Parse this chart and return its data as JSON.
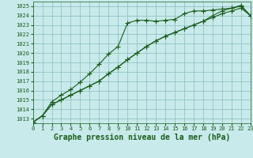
{
  "title": "Graphe pression niveau de la mer (hPa)",
  "background_color": "#c8eaea",
  "grid_color": "#8abcbc",
  "line_color": "#1a5c1a",
  "xlim": [
    0,
    23
  ],
  "ylim": [
    1012.5,
    1025.5
  ],
  "xticks": [
    0,
    1,
    2,
    3,
    4,
    5,
    6,
    7,
    8,
    9,
    10,
    11,
    12,
    13,
    14,
    15,
    16,
    17,
    18,
    19,
    20,
    21,
    22,
    23
  ],
  "yticks": [
    1013,
    1014,
    1015,
    1016,
    1017,
    1018,
    1019,
    1020,
    1021,
    1022,
    1023,
    1024,
    1025
  ],
  "series": [
    [
      1012.6,
      1013.3,
      1014.8,
      1015.5,
      1016.1,
      1016.9,
      1017.8,
      1018.8,
      1019.9,
      1020.7,
      1023.2,
      1023.5,
      1023.5,
      1023.4,
      1023.5,
      1023.6,
      1024.2,
      1024.5,
      1024.5,
      1024.6,
      1024.7,
      1024.8,
      1025.0,
      1024.0
    ],
    [
      1012.6,
      1013.3,
      1014.5,
      1015.0,
      1015.5,
      1016.0,
      1016.5,
      1017.0,
      1017.8,
      1018.5,
      1019.3,
      1020.0,
      1020.7,
      1021.3,
      1021.8,
      1022.2,
      1022.6,
      1023.0,
      1023.4,
      1023.8,
      1024.2,
      1024.5,
      1024.8,
      1024.0
    ],
    [
      1012.6,
      1013.3,
      1014.5,
      1015.0,
      1015.5,
      1016.0,
      1016.5,
      1017.0,
      1017.8,
      1018.5,
      1019.3,
      1020.0,
      1020.7,
      1021.3,
      1021.8,
      1022.2,
      1022.6,
      1023.0,
      1023.4,
      1024.0,
      1024.5,
      1024.8,
      1025.1,
      1024.0
    ]
  ],
  "marker": "+",
  "markersize": 4,
  "linewidth": 0.8,
  "title_fontsize": 7.0,
  "tick_fontsize": 5.0,
  "tick_label_color": "#1a5c1a"
}
